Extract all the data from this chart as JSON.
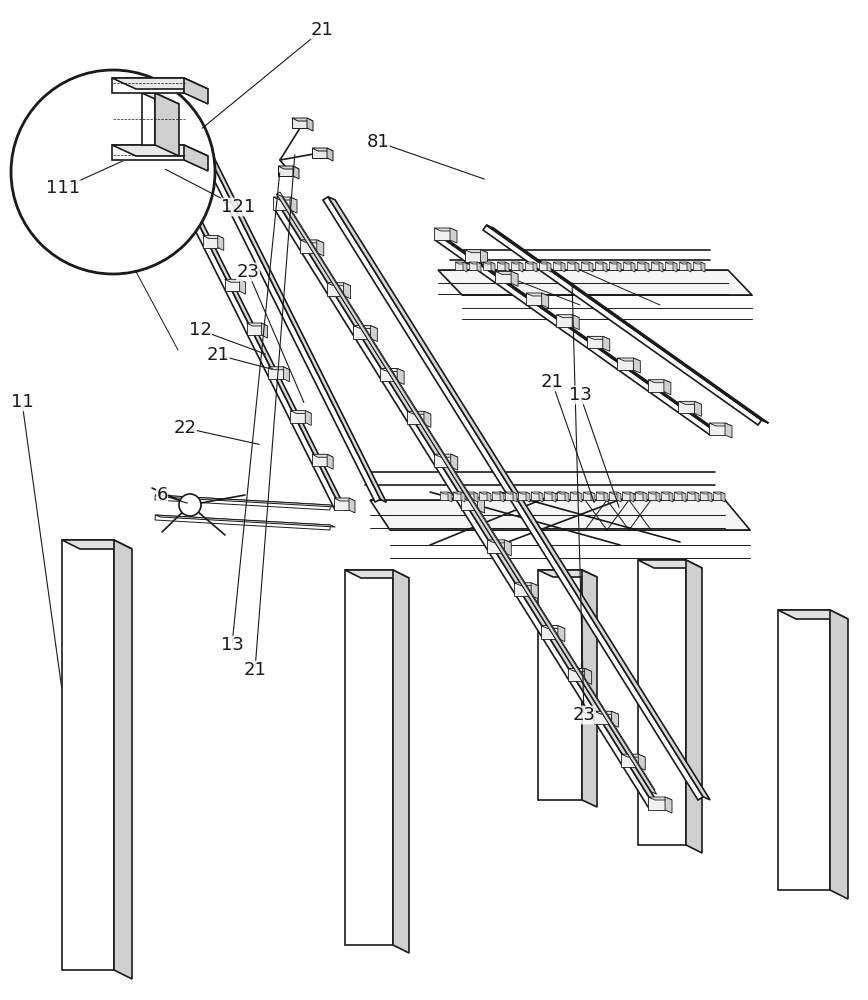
{
  "bg_color": "#ffffff",
  "line_color": "#1a1a1a",
  "lw_main": 1.2,
  "lw_thin": 0.7,
  "lw_thick": 2.0,
  "label_fontsize": 13,
  "col_face": "#ffffff",
  "col_top": "#e0e0e0",
  "col_right": "#d0d0d0",
  "step_face": "#f0f0f0",
  "step_top": "#e0e0e0",
  "step_right": "#d0d0d0",
  "land_face": "#f5f5f5"
}
